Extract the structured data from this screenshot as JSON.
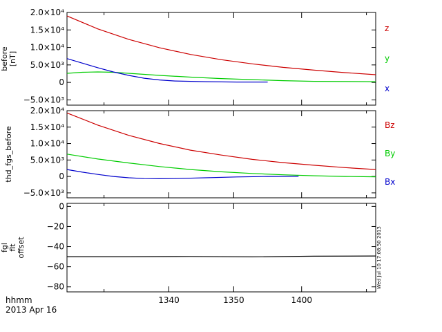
{
  "footer": {
    "line1": "hhmm",
    "line2": "2013 Apr 16"
  },
  "timestamp": "Wed Jul 10 17:08:50 2013",
  "x_ticks": [
    "1340",
    "1350",
    "1400"
  ],
  "chart_data": [
    {
      "type": "line",
      "ylabel_lines": [
        "before",
        "[nT]"
      ],
      "y_ticks": [
        {
          "value": 20000,
          "label": "2.0×10⁴"
        },
        {
          "value": 15000,
          "label": "1.5×10⁴"
        },
        {
          "value": 10000,
          "label": "1.0×10⁴"
        },
        {
          "value": 5000,
          "label": "5.0×10³"
        },
        {
          "value": 0,
          "label": "0"
        },
        {
          "value": -5000,
          "label": "−5.0×10³"
        }
      ],
      "ylim": [
        -6500,
        20000
      ],
      "xlim": [
        0,
        1
      ],
      "series": [
        {
          "name": "z",
          "color": "#cc0000",
          "x": [
            0,
            0.1,
            0.2,
            0.3,
            0.4,
            0.5,
            0.6,
            0.7,
            0.8,
            0.9,
            1.0
          ],
          "y": [
            19000,
            15300,
            12300,
            9900,
            8000,
            6500,
            5300,
            4300,
            3500,
            2800,
            2200
          ]
        },
        {
          "name": "y",
          "color": "#00cc00",
          "x": [
            0,
            0.05,
            0.1,
            0.15,
            0.2,
            0.3,
            0.4,
            0.5,
            0.6,
            0.7,
            0.8,
            1.0
          ],
          "y": [
            2600,
            2900,
            3000,
            2900,
            2600,
            2000,
            1500,
            1100,
            800,
            500,
            300,
            200
          ]
        },
        {
          "name": "x",
          "color": "#0000cc",
          "x": [
            0,
            0.05,
            0.1,
            0.15,
            0.2,
            0.25,
            0.3,
            0.35,
            0.45,
            0.55,
            0.65
          ],
          "y": [
            6800,
            5500,
            4200,
            3000,
            2000,
            1200,
            700,
            400,
            200,
            100,
            100
          ]
        }
      ]
    },
    {
      "type": "line",
      "ylabel_lines": [
        "thd_fgs_before"
      ],
      "y_ticks": [
        {
          "value": 20000,
          "label": "2.0×10⁴"
        },
        {
          "value": 15000,
          "label": "1.5×10⁴"
        },
        {
          "value": 10000,
          "label": "1.0×10⁴"
        },
        {
          "value": 5000,
          "label": "5.0×10³"
        },
        {
          "value": 0,
          "label": "0"
        },
        {
          "value": -5000,
          "label": "−5.0×10³"
        }
      ],
      "ylim": [
        -6500,
        20000
      ],
      "xlim": [
        0,
        1
      ],
      "series": [
        {
          "name": "Bz",
          "color": "#cc0000",
          "x": [
            0,
            0.1,
            0.2,
            0.3,
            0.4,
            0.5,
            0.6,
            0.7,
            0.8,
            0.9,
            1.0
          ],
          "y": [
            19300,
            15600,
            12500,
            10000,
            8000,
            6500,
            5200,
            4200,
            3400,
            2700,
            2100
          ]
        },
        {
          "name": "By",
          "color": "#00cc00",
          "x": [
            0,
            0.1,
            0.2,
            0.3,
            0.4,
            0.5,
            0.6,
            0.7,
            0.8,
            0.9,
            1.0
          ],
          "y": [
            6800,
            5300,
            4100,
            3000,
            2100,
            1400,
            900,
            500,
            200,
            0,
            -100
          ]
        },
        {
          "name": "Bx",
          "color": "#0000cc",
          "x": [
            0,
            0.05,
            0.1,
            0.15,
            0.2,
            0.25,
            0.3,
            0.35,
            0.45,
            0.55,
            0.65,
            0.75
          ],
          "y": [
            2100,
            1300,
            600,
            0,
            -400,
            -650,
            -700,
            -650,
            -400,
            -150,
            0,
            50
          ]
        }
      ]
    },
    {
      "type": "line",
      "ylabel_lines": [
        "fgl",
        "flt",
        "offset"
      ],
      "y_ticks": [
        {
          "value": 0,
          "label": "0"
        },
        {
          "value": -20,
          "label": "−20"
        },
        {
          "value": -40,
          "label": "−40"
        },
        {
          "value": -60,
          "label": "−60"
        },
        {
          "value": -80,
          "label": "−80"
        }
      ],
      "ylim": [
        -85,
        3
      ],
      "xlim": [
        0,
        1
      ],
      "series": [
        {
          "name": "",
          "color": "#000000",
          "x": [
            0,
            0.2,
            0.4,
            0.6,
            0.8,
            1.0
          ],
          "y": [
            -50,
            -50,
            -49.8,
            -50.2,
            -49.5,
            -49.3
          ]
        }
      ]
    }
  ]
}
